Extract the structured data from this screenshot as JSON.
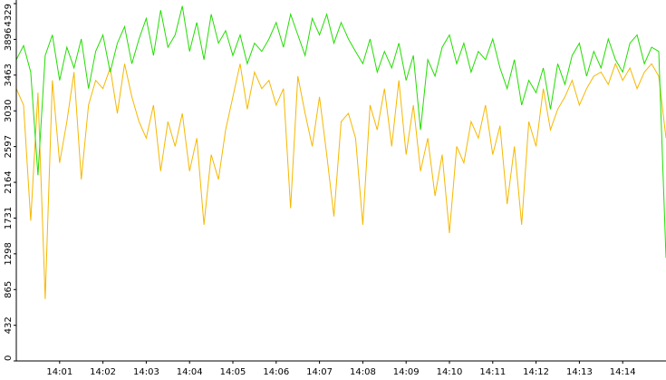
{
  "chart_data": {
    "type": "line",
    "categories": [
      null,
      null,
      null,
      null,
      null,
      null,
      "14:01",
      null,
      null,
      null,
      null,
      null,
      "14:02",
      null,
      null,
      null,
      null,
      null,
      "14:03",
      null,
      null,
      null,
      null,
      null,
      "14:04",
      null,
      null,
      null,
      null,
      null,
      "14:05",
      null,
      null,
      null,
      null,
      null,
      "14:06",
      null,
      null,
      null,
      null,
      null,
      "14:07",
      null,
      null,
      null,
      null,
      null,
      "14:08",
      null,
      null,
      null,
      null,
      null,
      "14:09",
      null,
      null,
      null,
      null,
      null,
      "14:10",
      null,
      null,
      null,
      null,
      null,
      "14:11",
      null,
      null,
      null,
      null,
      null,
      "14:12",
      null,
      null,
      null,
      null,
      null,
      "14:13",
      null,
      null,
      null,
      null,
      null,
      "14:14",
      null,
      null,
      null,
      null,
      null,
      null
    ],
    "series": [
      {
        "color": "#f5b800",
        "values": [
          3300,
          3100,
          1700,
          3250,
          750,
          3400,
          2400,
          2900,
          3500,
          2200,
          3100,
          3400,
          3300,
          3550,
          3000,
          3600,
          3200,
          2900,
          2700,
          3100,
          2300,
          2900,
          2600,
          3000,
          2300,
          2700,
          1650,
          2500,
          2200,
          2800,
          3200,
          3600,
          3050,
          3500,
          3300,
          3400,
          3100,
          3300,
          1850,
          3450,
          3000,
          2600,
          3200,
          2500,
          1750,
          2900,
          3000,
          2700,
          1650,
          3100,
          2800,
          3300,
          2600,
          3400,
          2500,
          3100,
          2300,
          2700,
          2000,
          2500,
          1550,
          2600,
          2400,
          2900,
          2700,
          3100,
          2500,
          2850,
          1900,
          2600,
          1650,
          2900,
          2600,
          3300,
          2800,
          3050,
          3200,
          3400,
          3100,
          3300,
          3450,
          3500,
          3350,
          3600,
          3400,
          3550,
          3300,
          3500,
          3600,
          3450,
          2700
        ]
      },
      {
        "color": "#22dd00",
        "values": [
          3650,
          3820,
          3500,
          2250,
          3700,
          3950,
          3400,
          3800,
          3550,
          3900,
          3300,
          3750,
          3950,
          3500,
          3850,
          4050,
          3600,
          3900,
          4150,
          3700,
          4250,
          3800,
          3950,
          4300,
          3750,
          4100,
          3650,
          4200,
          3850,
          4000,
          3700,
          3950,
          3600,
          3850,
          3750,
          3900,
          4100,
          3800,
          4200,
          3950,
          3700,
          4150,
          3950,
          4200,
          3850,
          4100,
          3900,
          3750,
          3600,
          3900,
          3500,
          3750,
          3550,
          3850,
          3400,
          3700,
          2800,
          3650,
          3450,
          3800,
          3950,
          3600,
          3850,
          3500,
          3750,
          3650,
          3900,
          3550,
          3300,
          3650,
          3100,
          3400,
          3250,
          3550,
          3050,
          3600,
          3350,
          3700,
          3850,
          3450,
          3750,
          3550,
          3900,
          3650,
          3500,
          3850,
          3950,
          3600,
          3800,
          3750,
          1250
        ]
      }
    ],
    "ylim": [
      0,
      4329
    ],
    "yticks": [
      0,
      432,
      865,
      1298,
      1731,
      2164,
      2597,
      3030,
      3463,
      3896,
      4329
    ]
  }
}
